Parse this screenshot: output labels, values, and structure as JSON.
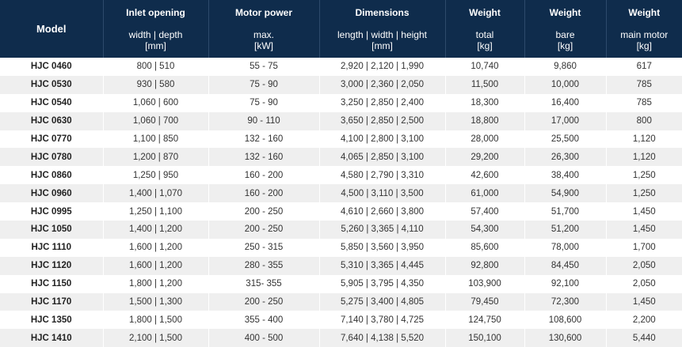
{
  "table": {
    "columns": [
      {
        "title": "Model"
      },
      {
        "title": "Inlet opening",
        "sub": [
          "width | depth",
          "[mm]"
        ]
      },
      {
        "title": "Motor power",
        "sub": [
          "max.",
          "[kW]"
        ]
      },
      {
        "title": "Dimensions",
        "sub": [
          "length | width | height",
          "[mm]"
        ]
      },
      {
        "title": "Weight",
        "sub": [
          "total",
          "[kg]"
        ]
      },
      {
        "title": "Weight",
        "sub": [
          "bare",
          "[kg]"
        ]
      },
      {
        "title": "Weight",
        "sub": [
          "main motor",
          "[kg]"
        ]
      }
    ],
    "rows": [
      [
        "HJC 0460",
        "800 | 510",
        "55 - 75",
        "2,920 | 2,120 | 1,990",
        "10,740",
        "9,860",
        "617"
      ],
      [
        "HJC 0530",
        "930 | 580",
        "75 - 90",
        "3,000 | 2,360 | 2,050",
        "11,500",
        "10,000",
        "785"
      ],
      [
        "HJC 0540",
        "1,060 | 600",
        "75 - 90",
        "3,250 | 2,850 | 2,400",
        "18,300",
        "16,400",
        "785"
      ],
      [
        "HJC 0630",
        "1,060 | 700",
        "90 - 110",
        "3,650 | 2,850 | 2,500",
        "18,800",
        "17,000",
        "800"
      ],
      [
        "HJC 0770",
        "1,100 | 850",
        "132 - 160",
        "4,100 | 2,800 | 3,100",
        "28,000",
        "25,500",
        "1,120"
      ],
      [
        "HJC 0780",
        "1,200 | 870",
        "132 - 160",
        "4,065 | 2,850 | 3,100",
        "29,200",
        "26,300",
        "1,120"
      ],
      [
        "HJC 0860",
        "1,250 | 950",
        "160 - 200",
        "4,580 | 2,790 | 3,310",
        "42,600",
        "38,400",
        "1,250"
      ],
      [
        "HJC 0960",
        "1,400 | 1,070",
        "160 - 200",
        "4,500 | 3,110 | 3,500",
        "61,000",
        "54,900",
        "1,250"
      ],
      [
        "HJC 0995",
        "1,250 | 1,100",
        "200 - 250",
        "4,610 | 2,660 | 3,800",
        "57,400",
        "51,700",
        "1,450"
      ],
      [
        "HJC 1050",
        "1,400 | 1,200",
        "200 - 250",
        "5,260 | 3,365 | 4,110",
        "54,300",
        "51,200",
        "1,450"
      ],
      [
        "HJC 1110",
        "1,600 | 1,200",
        "250 - 315",
        "5,850 | 3,560 | 3,950",
        "85,600",
        "78,000",
        "1,700"
      ],
      [
        "HJC 1120",
        "1,600 | 1,200",
        "280 - 355",
        "5,310 | 3,365 | 4,445",
        "92,800",
        "84,450",
        "2,050"
      ],
      [
        "HJC 1150",
        "1,800 | 1,200",
        "315- 355",
        "5,905 | 3,795 | 4,350",
        "103,900",
        "92,100",
        "2,050"
      ],
      [
        "HJC 1170",
        "1,500 | 1,300",
        "200 - 250",
        "5,275 | 3,400 | 4,805",
        "79,450",
        "72,300",
        "1,450"
      ],
      [
        "HJC 1350",
        "1,800 | 1,500",
        "355 - 400",
        "7,140 | 3,780 | 4,725",
        "124,750",
        "108,600",
        "2,200"
      ],
      [
        "HJC 1410",
        "2,100 | 1,500",
        "400 - 500",
        "7,640 | 4,138 | 5,520",
        "150,100",
        "130,600",
        "5,440"
      ]
    ]
  }
}
